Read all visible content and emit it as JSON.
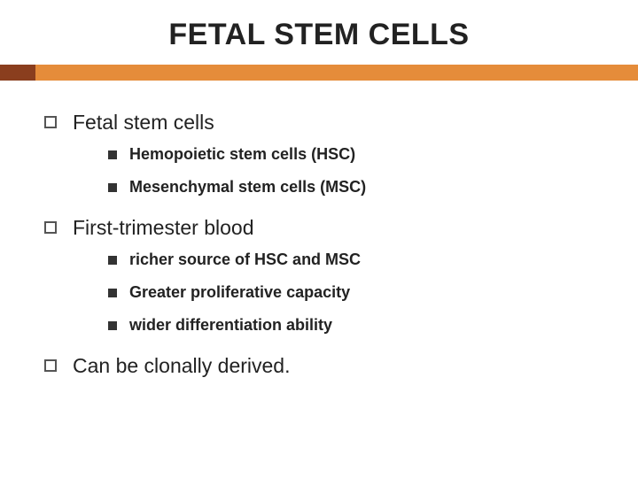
{
  "title": {
    "text": "FETAL STEM CELLS",
    "fontsize": 34,
    "color": "#222222"
  },
  "accent": {
    "height": 18,
    "left_width": 40,
    "left_color": "#8a3e1e",
    "right_color": "#e58c3a"
  },
  "body": {
    "lvl1_fontsize": 23,
    "lvl1_color": "#222222",
    "lvl1_bullet_border": "#555555",
    "lvl2_fontsize": 18,
    "lvl2_color": "#222222",
    "lvl2_bullet_fill": "#333333"
  },
  "items": [
    {
      "label": "Fetal stem cells",
      "children": [
        "Hemopoietic stem cells (HSC)",
        "Mesenchymal stem cells (MSC)"
      ]
    },
    {
      "label": "First-trimester blood",
      "children": [
        "richer source of HSC and MSC",
        "Greater proliferative capacity",
        "wider differentiation ability"
      ]
    },
    {
      "label": "Can be clonally derived.",
      "children": []
    }
  ]
}
